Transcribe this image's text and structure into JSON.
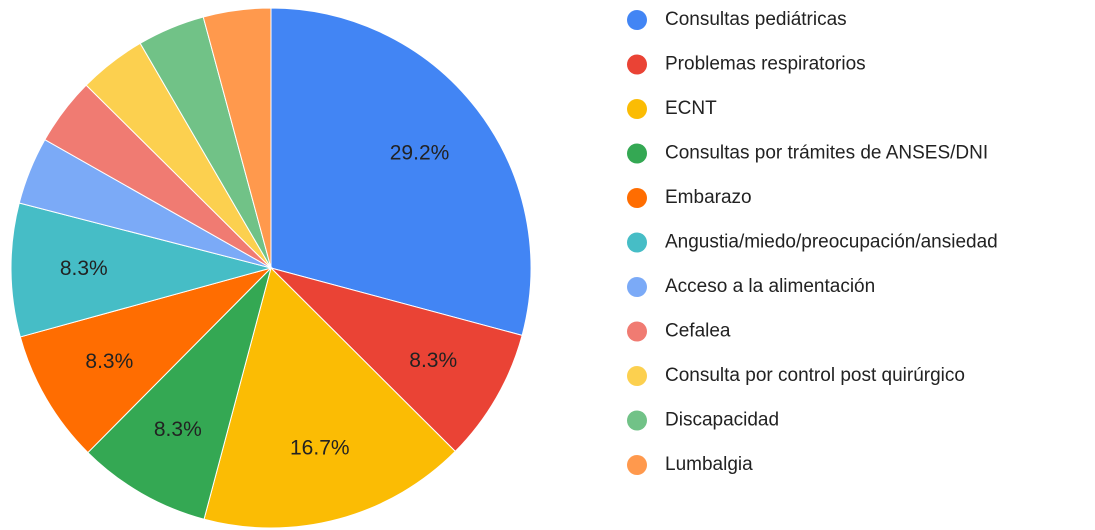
{
  "chart_data": {
    "type": "pie",
    "categories": [
      "Consultas pediátricas",
      "Problemas respiratorios",
      "ECNT",
      "Consultas por trámites de ANSES/DNI",
      "Embarazo",
      "Angustia/miedo/preocupación/ansiedad",
      "Acceso a la alimentación",
      "Cefalea",
      "Consulta por control post quirúrgico",
      "Discapacidad",
      "Lumbalgia"
    ],
    "values": [
      29.2,
      8.3,
      16.7,
      8.3,
      8.3,
      8.3,
      4.2,
      4.2,
      4.2,
      4.2,
      4.2
    ],
    "value_labels": [
      "29.2%",
      "8.3%",
      "16.7%",
      "8.3%",
      "8.3%",
      "8.3%",
      null,
      null,
      null,
      null,
      null
    ],
    "colors": [
      "#4285f4",
      "#ea4335",
      "#fbbc04",
      "#34a853",
      "#ff6d01",
      "#46bdc6",
      "#7baaf7",
      "#f07b72",
      "#fcd04f",
      "#71c287",
      "#ff994d"
    ],
    "legend": "right"
  }
}
